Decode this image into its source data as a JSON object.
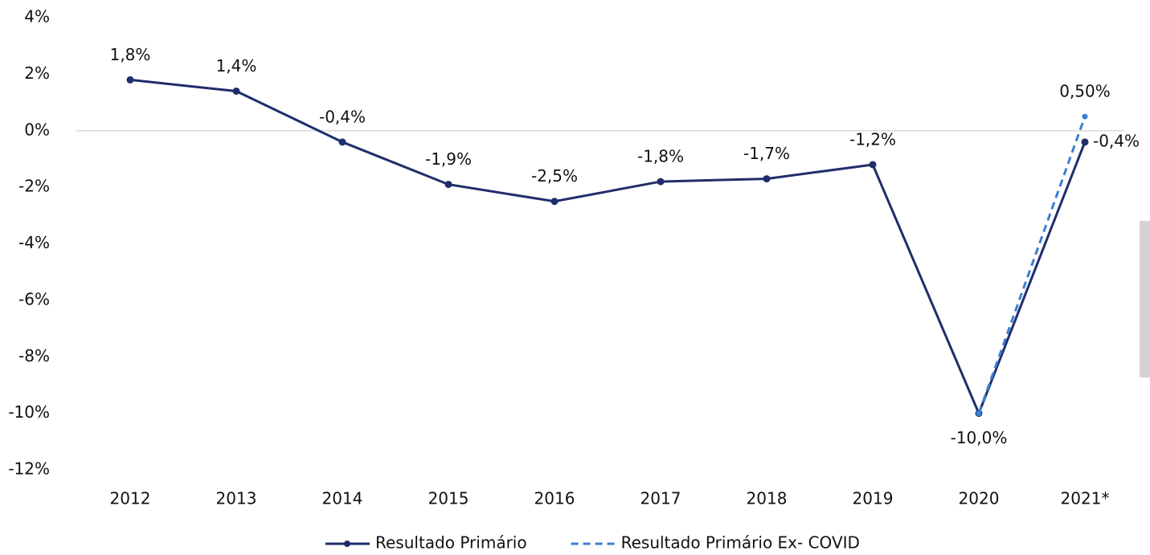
{
  "chart_data": {
    "type": "line",
    "categories": [
      "2012",
      "2013",
      "2014",
      "2015",
      "2016",
      "2017",
      "2018",
      "2019",
      "2020",
      "2021*"
    ],
    "series": [
      {
        "name": "Resultado Primário",
        "color": "#1f2d6b",
        "style": "solid",
        "values": [
          1.8,
          1.4,
          -0.4,
          -1.9,
          -2.5,
          -1.8,
          -1.7,
          -1.2,
          -10.0,
          -0.4
        ],
        "value_labels": [
          "1,8%",
          "1,4%",
          "-0,4%",
          "-1,9%",
          "-2,5%",
          "-1,8%",
          "-1,7%",
          "-1,2%",
          "-10,0%",
          "-0,4%"
        ]
      },
      {
        "name": "Resultado Primário Ex- COVID",
        "color": "#3b7fd4",
        "style": "dashed",
        "values": [
          null,
          null,
          null,
          null,
          null,
          null,
          null,
          null,
          -10.0,
          0.5
        ],
        "value_labels": [
          null,
          null,
          null,
          null,
          null,
          null,
          null,
          null,
          null,
          "0,50%"
        ]
      }
    ],
    "ylim": [
      -12,
      4
    ],
    "yticks": [
      {
        "value": 4,
        "label": "4%"
      },
      {
        "value": 2,
        "label": "2%"
      },
      {
        "value": 0,
        "label": "0%"
      },
      {
        "value": -2,
        "label": "-2%"
      },
      {
        "value": -4,
        "label": "-4%"
      },
      {
        "value": -6,
        "label": "-6%"
      },
      {
        "value": -8,
        "label": "-8%"
      },
      {
        "value": -10,
        "label": "-10%"
      },
      {
        "value": -12,
        "label": "-12%"
      }
    ],
    "grid": false,
    "legend": "bottom"
  }
}
